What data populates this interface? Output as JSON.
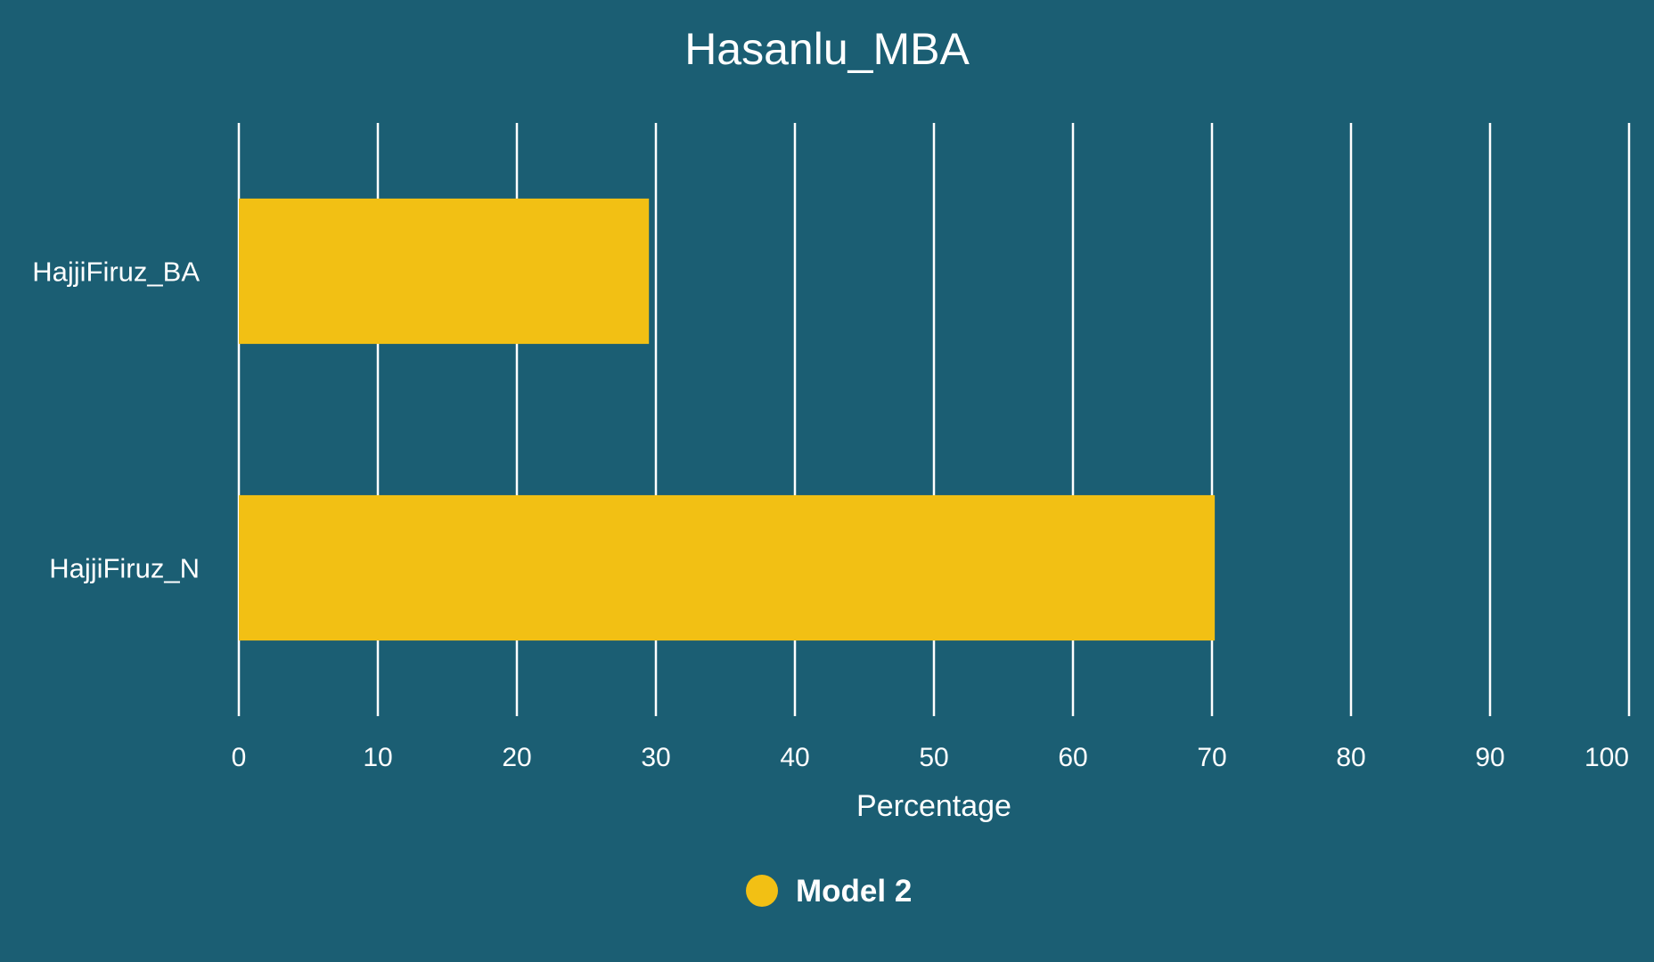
{
  "colors": {
    "background": "#1b5e73",
    "bar": "#f2c014",
    "grid": "#ffffff",
    "text": "#ffffff"
  },
  "chart_data": {
    "type": "bar",
    "orientation": "horizontal",
    "title": "Hasanlu_MBA",
    "xlabel": "Percentage",
    "ylabel": "",
    "categories": [
      "HajjiFiruz_BA",
      "HajjiFiruz_N"
    ],
    "series": [
      {
        "name": "Model 2",
        "color": "#f2c014",
        "values": [
          29.5,
          70.2
        ]
      }
    ],
    "xlim": [
      0,
      100
    ],
    "xticks": [
      "0",
      "10",
      "20",
      "30",
      "40",
      "50",
      "60",
      "70",
      "80",
      "90",
      "100"
    ],
    "grid": true,
    "legend_position": "bottom-center"
  }
}
